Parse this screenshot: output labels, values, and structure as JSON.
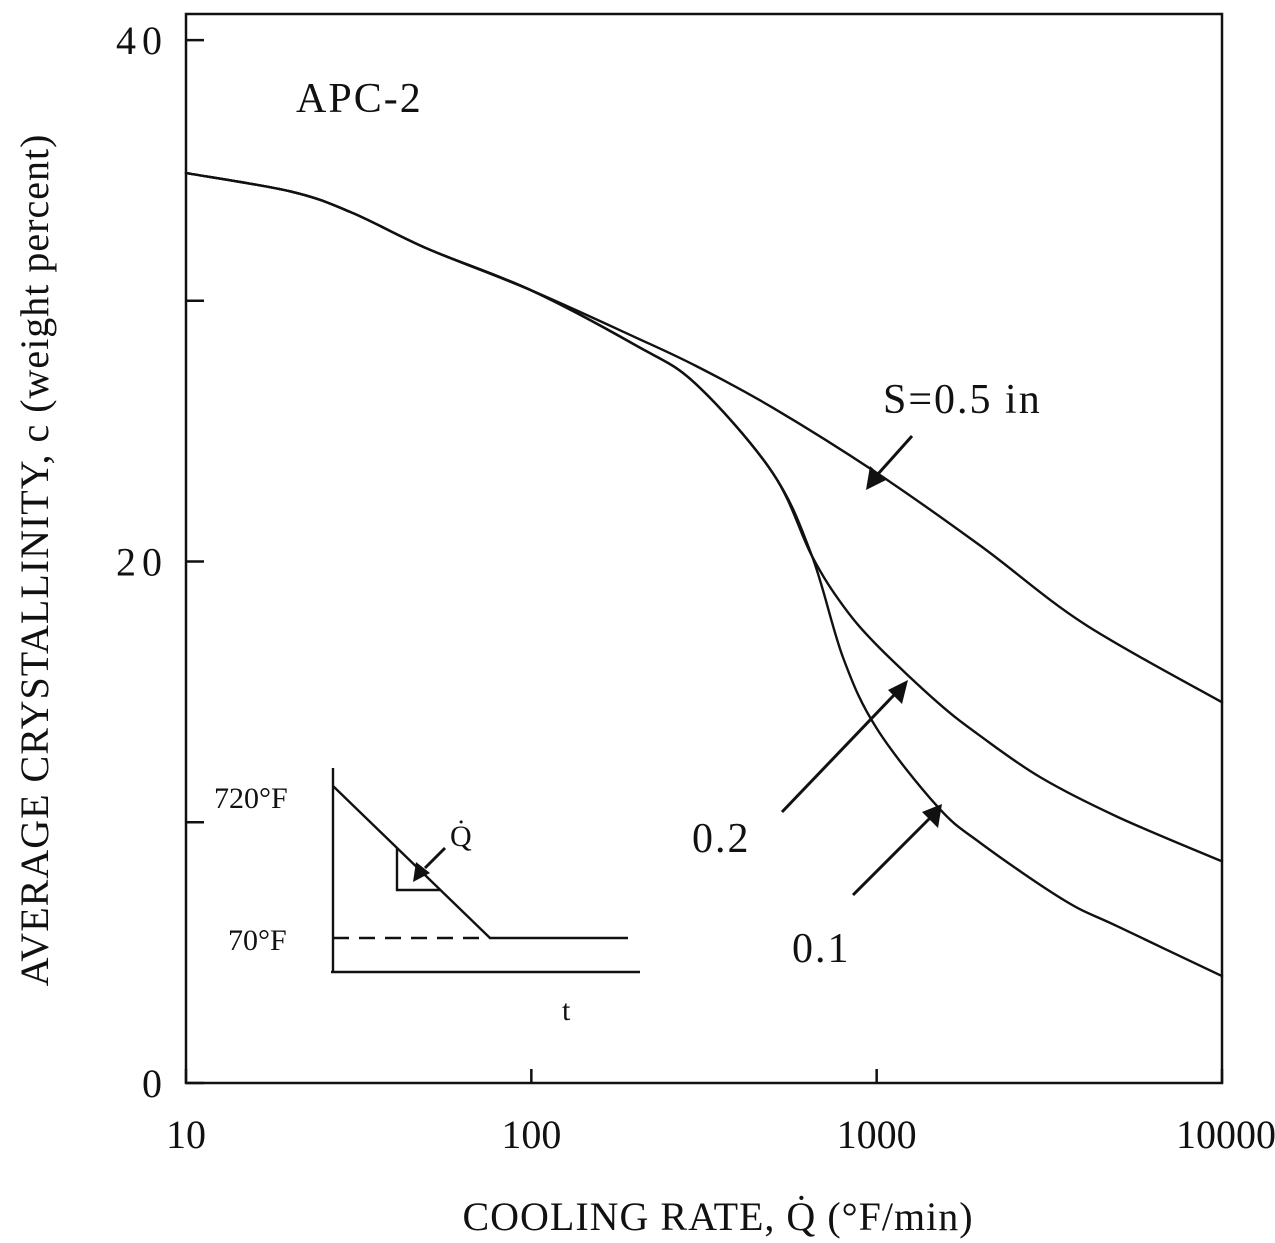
{
  "chart_data": {
    "type": "line",
    "title": "APC-2",
    "xlabel": "COOLING RATE, Q̇ (°F/min)",
    "ylabel": "AVERAGE CRYSTALLINITY, c (weight percent)",
    "xscale": "log",
    "xlim": [
      10,
      10000
    ],
    "ylim": [
      0,
      41
    ],
    "x_ticks": [
      10,
      100,
      1000,
      10000
    ],
    "x_tick_labels": [
      "10",
      "100",
      "1000",
      "10000"
    ],
    "y_ticks": [
      0,
      10,
      20,
      30,
      40
    ],
    "y_tick_labels": [
      "0",
      "",
      "20",
      "",
      "40"
    ],
    "grid": false,
    "legend": "none",
    "series": [
      {
        "name": "S=0.5 in",
        "x": [
          10,
          20,
          30,
          50,
          100,
          200,
          300,
          500,
          1000,
          2000,
          4000,
          10000
        ],
        "y": [
          34.9,
          34.2,
          33.4,
          32.0,
          30.4,
          28.6,
          27.5,
          25.9,
          23.4,
          20.6,
          17.6,
          14.6
        ]
      },
      {
        "name": "0.2",
        "x": [
          10,
          20,
          30,
          50,
          100,
          200,
          300,
          500,
          650,
          800,
          1000,
          1500,
          2000,
          3000,
          5000,
          10000
        ],
        "y": [
          34.9,
          34.2,
          33.4,
          32.0,
          30.4,
          28.3,
          26.8,
          23.4,
          20.2,
          18.3,
          16.8,
          14.6,
          13.3,
          11.7,
          10.2,
          8.5
        ]
      },
      {
        "name": "0.1",
        "x": [
          10,
          20,
          30,
          50,
          100,
          200,
          300,
          500,
          650,
          800,
          1000,
          1500,
          2000,
          3500,
          5000,
          10000
        ],
        "y": [
          34.9,
          34.2,
          33.4,
          32.0,
          30.4,
          28.3,
          26.8,
          23.4,
          20.2,
          16.3,
          13.6,
          10.6,
          9.2,
          7.0,
          6.0,
          4.1
        ]
      }
    ],
    "annotations": {
      "s_label": "S=0.5  in",
      "label_02": "0.2",
      "label_01": "0.1"
    },
    "inset": {
      "label_high": "720°F",
      "label_low": "70°F",
      "label_rate": "Q̇",
      "label_t": "t"
    }
  }
}
